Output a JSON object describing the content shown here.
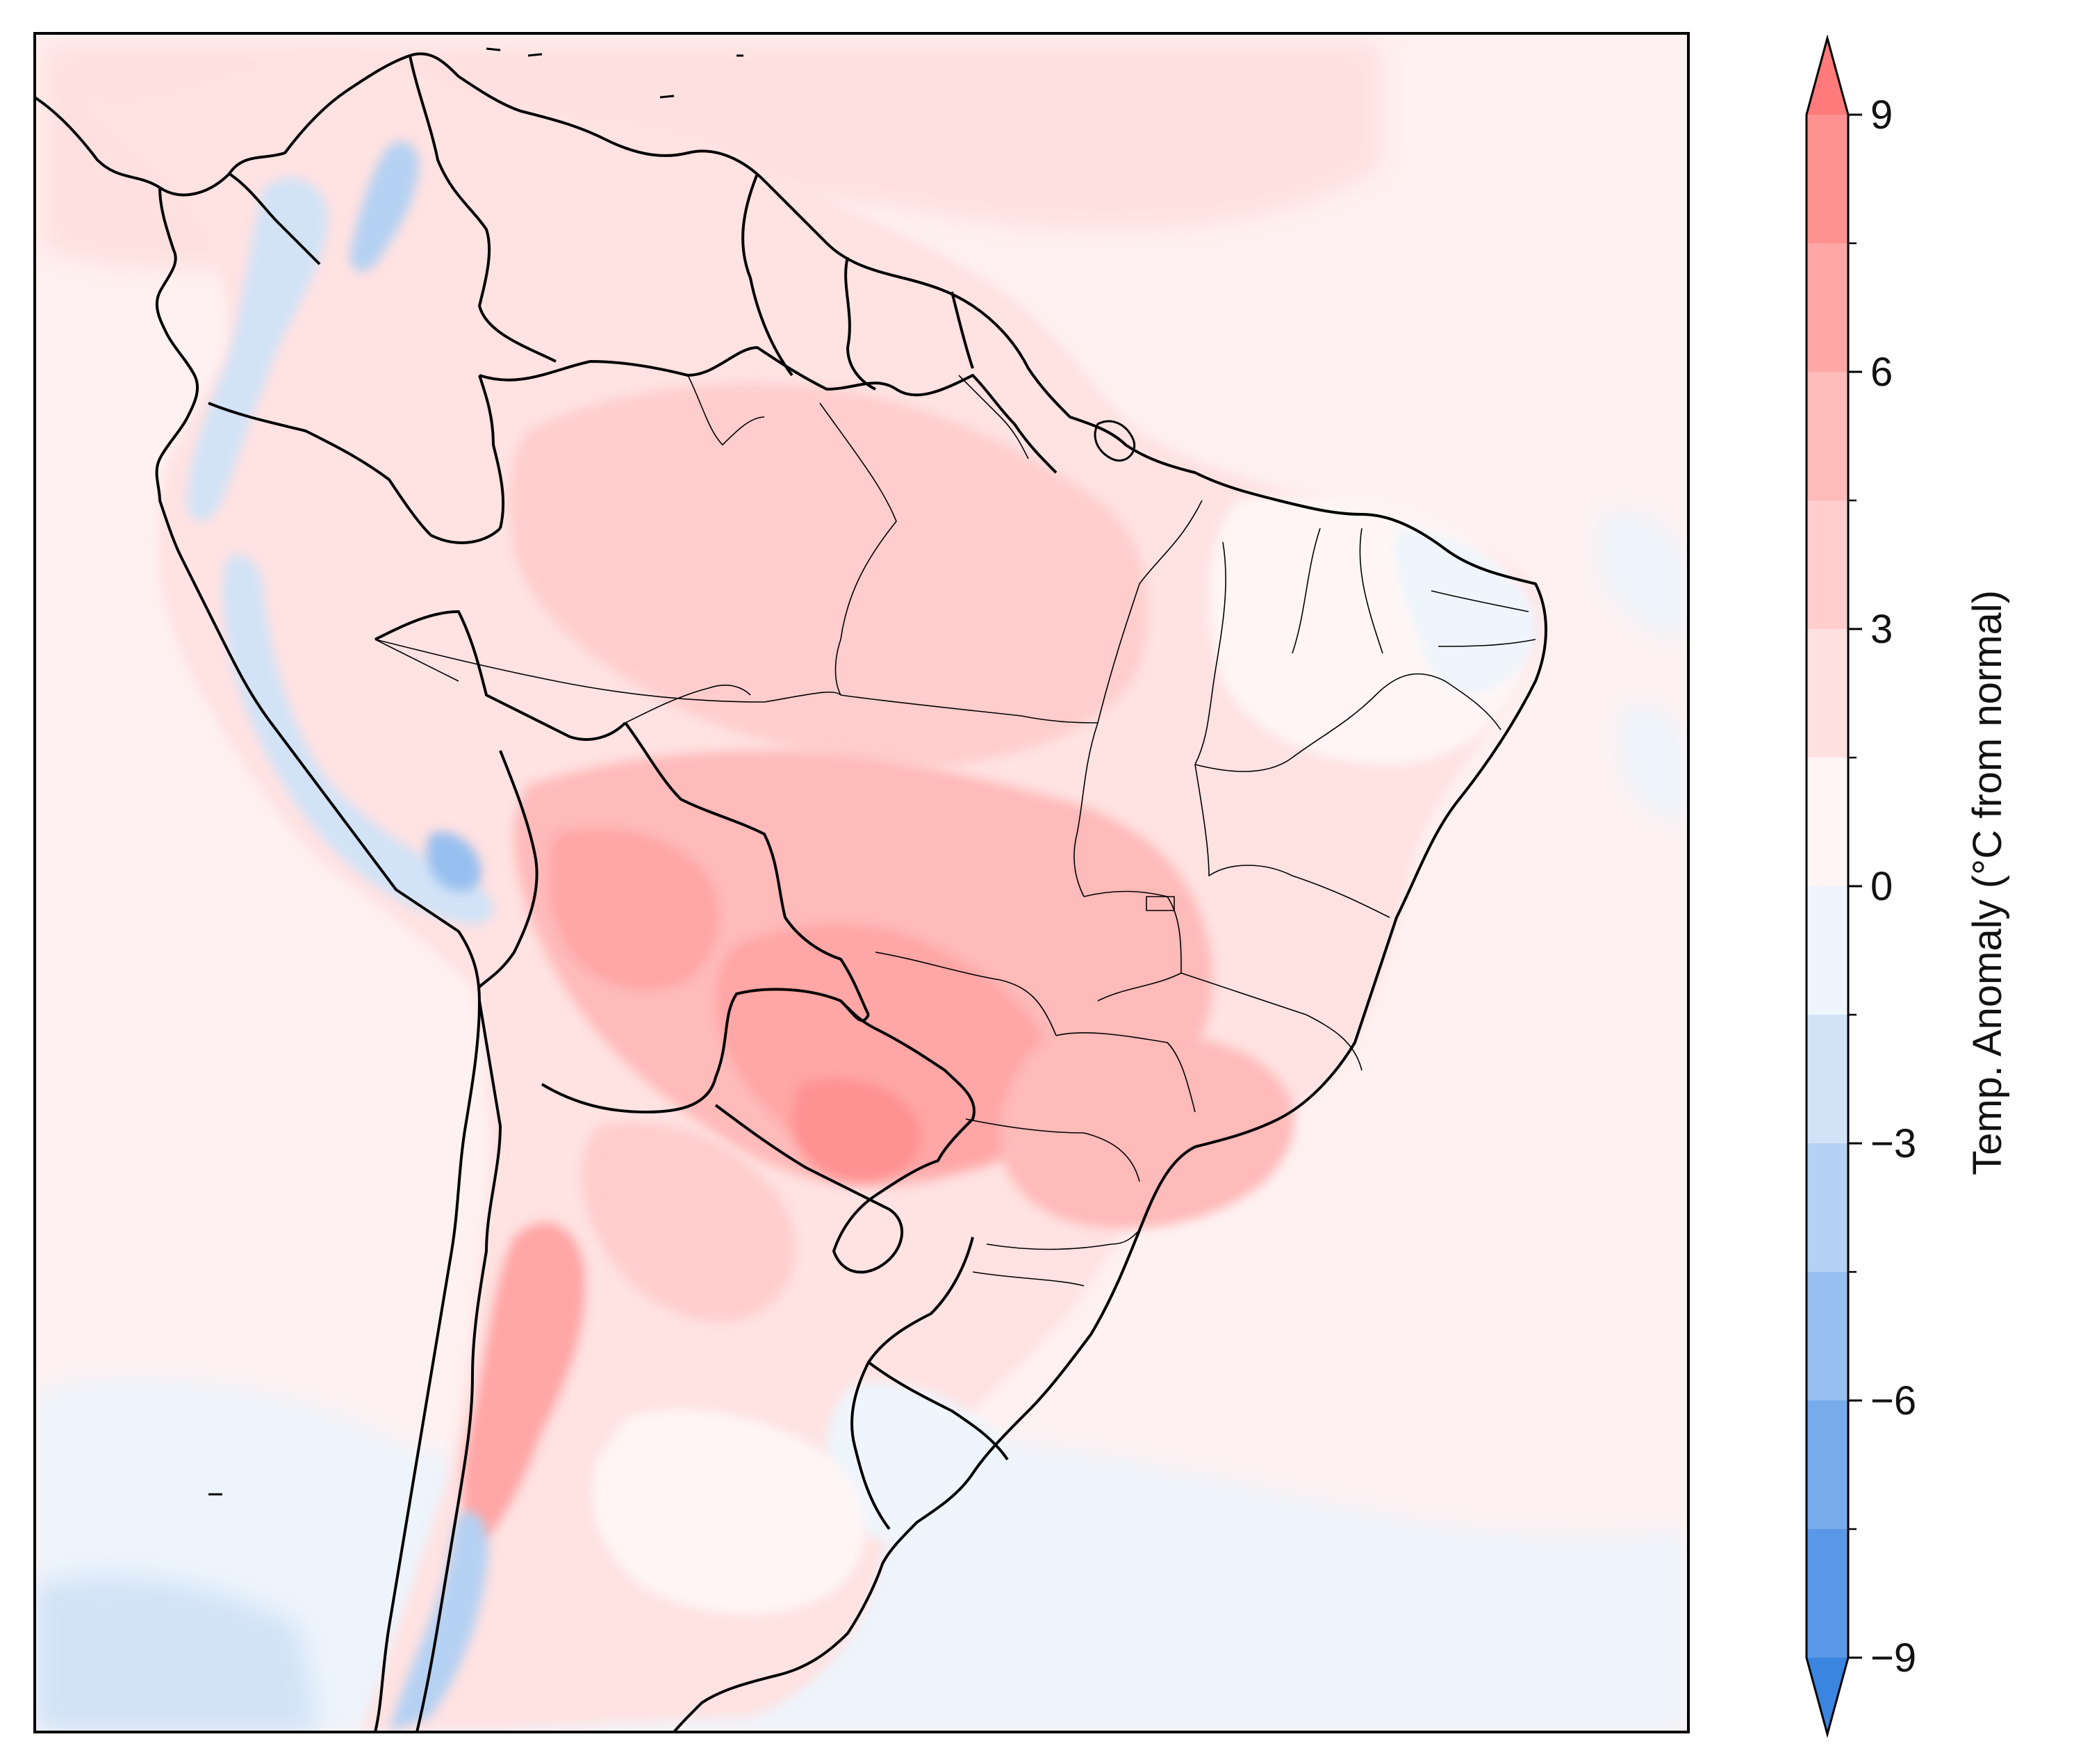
{
  "colorbar": {
    "label": "Temp. Anomaly (°C from normal)",
    "ticks": [
      {
        "value": 9,
        "text": "9"
      },
      {
        "value": 6,
        "text": "6"
      },
      {
        "value": 3,
        "text": "3"
      },
      {
        "value": 0,
        "text": "0"
      },
      {
        "value": -3,
        "text": "−3"
      },
      {
        "value": -6,
        "text": "−6"
      },
      {
        "value": -9,
        "text": "−9"
      }
    ],
    "range": [
      -9,
      9
    ],
    "extend": "both",
    "levels": [
      {
        "from": -9,
        "to": -7.5,
        "color": "#5a97e6"
      },
      {
        "from": -7.5,
        "to": -6,
        "color": "#78abeb"
      },
      {
        "from": -6,
        "to": -4.5,
        "color": "#97bfef"
      },
      {
        "from": -4.5,
        "to": -3,
        "color": "#b5d1f3"
      },
      {
        "from": -3,
        "to": -1.5,
        "color": "#d2e3f7"
      },
      {
        "from": -1.5,
        "to": 0,
        "color": "#eef5fc"
      },
      {
        "from": 0,
        "to": 1.5,
        "color": "#fff5f5"
      },
      {
        "from": 1.5,
        "to": 3,
        "color": "#ffe1e1"
      },
      {
        "from": 3,
        "to": 4.5,
        "color": "#ffcdcd"
      },
      {
        "from": 4.5,
        "to": 6,
        "color": "#ffbaba"
      },
      {
        "from": 6,
        "to": 7.5,
        "color": "#ffa6a6"
      },
      {
        "from": 7.5,
        "to": 9,
        "color": "#ff9191"
      }
    ],
    "under_color": "#3a85e0",
    "over_color": "#ff7a7a"
  },
  "map": {
    "region": "South America",
    "colors": {
      "ocean_warm": "#fff0f0",
      "ocean_cool": "#edf4fc",
      "border": "#000000"
    }
  }
}
